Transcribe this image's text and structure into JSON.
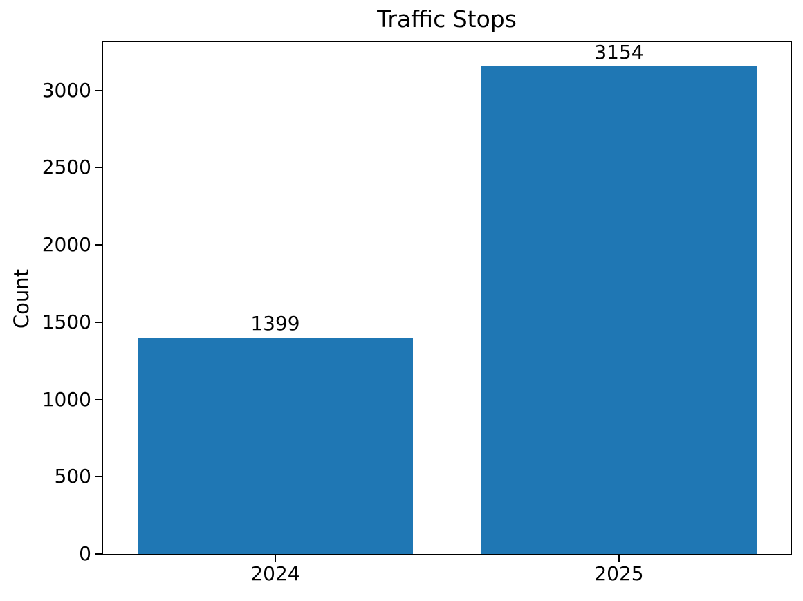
{
  "chart_data": {
    "type": "bar",
    "title": "Traffic Stops",
    "xlabel": "",
    "ylabel": "Count",
    "categories": [
      "2024",
      "2025"
    ],
    "values": [
      1399,
      3154
    ],
    "value_labels": [
      "1399",
      "3154"
    ],
    "yticks": [
      0,
      500,
      1000,
      1500,
      2000,
      2500,
      3000
    ],
    "ytick_labels": [
      "0",
      "500",
      "1000",
      "1500",
      "2000",
      "2500",
      "3000"
    ],
    "ylim": [
      0,
      3312
    ],
    "xlim": [
      -0.5,
      1.5
    ],
    "bar_width_fraction": 0.8,
    "bar_color": "#1f77b4",
    "axis_color": "#000000",
    "text_color": "#000000",
    "grid": false,
    "legend": null
  }
}
